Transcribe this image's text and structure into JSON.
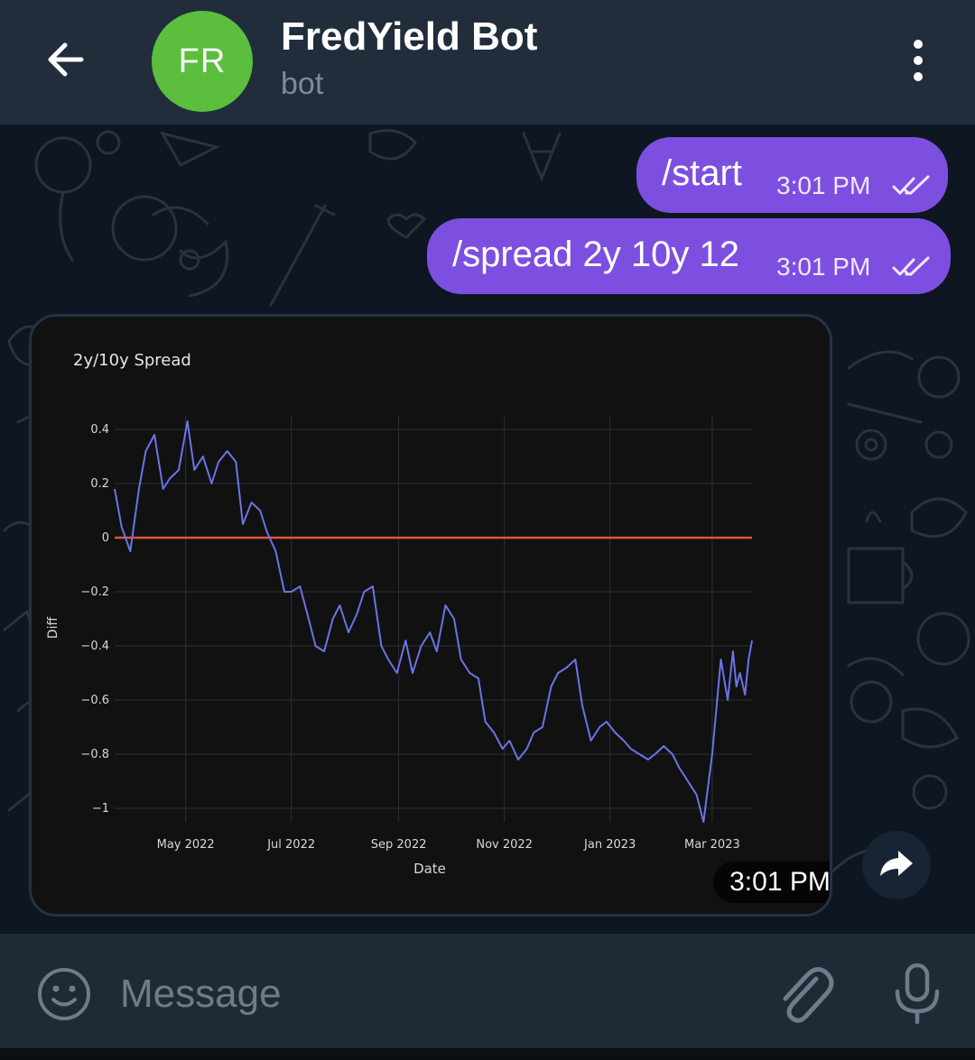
{
  "header": {
    "avatar_initials": "FR",
    "title": "FredYield Bot",
    "subtitle": "bot",
    "back_icon": "arrow-left-icon",
    "menu_icon": "more-vertical-icon"
  },
  "messages": [
    {
      "text": "/start",
      "time": "3:01 PM",
      "status_icon": "double-check-icon"
    },
    {
      "text": "/spread 2y 10y 12",
      "time": "3:01 PM",
      "status_icon": "double-check-icon"
    }
  ],
  "photo": {
    "time": "3:01 PM",
    "share_icon": "forward-arrow-icon"
  },
  "chart_data": {
    "type": "line",
    "title": "2y/10y Spread",
    "xlabel": "Date",
    "ylabel": "Diff",
    "y_ticks": [
      "0.4",
      "0.2",
      "0",
      "−0.2",
      "−0.4",
      "−0.6",
      "−0.8",
      "−1"
    ],
    "x_ticks": [
      "May 2022",
      "Jul 2022",
      "Sep 2022",
      "Nov 2022",
      "Jan 2023",
      "Mar 2023"
    ],
    "ylim": [
      -1.05,
      0.45
    ],
    "xlim": [
      "2022-03-21",
      "2023-03-24"
    ],
    "grid": true,
    "reference_line": {
      "y": 0,
      "color": "#e0533a"
    },
    "series": [
      {
        "color": "#6a74e6",
        "x": [
          "2022-03-21",
          "2022-03-25",
          "2022-03-30",
          "2022-04-04",
          "2022-04-08",
          "2022-04-13",
          "2022-04-18",
          "2022-04-22",
          "2022-04-27",
          "2022-05-02",
          "2022-05-06",
          "2022-05-11",
          "2022-05-16",
          "2022-05-20",
          "2022-05-25",
          "2022-05-30",
          "2022-06-03",
          "2022-06-08",
          "2022-06-13",
          "2022-06-17",
          "2022-06-22",
          "2022-06-27",
          "2022-07-01",
          "2022-07-06",
          "2022-07-11",
          "2022-07-15",
          "2022-07-20",
          "2022-07-25",
          "2022-07-29",
          "2022-08-03",
          "2022-08-08",
          "2022-08-12",
          "2022-08-17",
          "2022-08-22",
          "2022-08-26",
          "2022-08-31",
          "2022-09-05",
          "2022-09-09",
          "2022-09-14",
          "2022-09-19",
          "2022-09-23",
          "2022-09-28",
          "2022-10-03",
          "2022-10-07",
          "2022-10-12",
          "2022-10-17",
          "2022-10-21",
          "2022-10-26",
          "2022-10-31",
          "2022-11-04",
          "2022-11-09",
          "2022-11-14",
          "2022-11-18",
          "2022-11-23",
          "2022-11-28",
          "2022-12-02",
          "2022-12-07",
          "2022-12-12",
          "2022-12-16",
          "2022-12-21",
          "2022-12-26",
          "2022-12-30",
          "2023-01-04",
          "2023-01-09",
          "2023-01-13",
          "2023-01-18",
          "2023-01-23",
          "2023-01-27",
          "2023-02-01",
          "2023-02-06",
          "2023-02-10",
          "2023-02-15",
          "2023-02-20",
          "2023-02-24",
          "2023-03-01",
          "2023-03-06",
          "2023-03-10",
          "2023-03-13",
          "2023-03-15",
          "2023-03-17",
          "2023-03-20",
          "2023-03-22",
          "2023-03-24"
        ],
        "y": [
          0.18,
          0.04,
          -0.05,
          0.18,
          0.32,
          0.38,
          0.18,
          0.22,
          0.25,
          0.43,
          0.25,
          0.3,
          0.2,
          0.28,
          0.32,
          0.28,
          0.05,
          0.13,
          0.1,
          0.02,
          -0.05,
          -0.2,
          -0.2,
          -0.18,
          -0.3,
          -0.4,
          -0.42,
          -0.3,
          -0.25,
          -0.35,
          -0.28,
          -0.2,
          -0.18,
          -0.4,
          -0.45,
          -0.5,
          -0.38,
          -0.5,
          -0.4,
          -0.35,
          -0.42,
          -0.25,
          -0.3,
          -0.45,
          -0.5,
          -0.52,
          -0.68,
          -0.72,
          -0.78,
          -0.75,
          -0.82,
          -0.78,
          -0.72,
          -0.7,
          -0.55,
          -0.5,
          -0.48,
          -0.45,
          -0.62,
          -0.75,
          -0.7,
          -0.68,
          -0.72,
          -0.75,
          -0.78,
          -0.8,
          -0.82,
          -0.8,
          -0.77,
          -0.8,
          -0.85,
          -0.9,
          -0.95,
          -1.05,
          -0.8,
          -0.45,
          -0.6,
          -0.42,
          -0.55,
          -0.5,
          -0.58,
          -0.45,
          -0.38
        ]
      }
    ]
  },
  "input": {
    "placeholder": "Message",
    "emoji_icon": "smile-icon",
    "attach_icon": "paperclip-icon",
    "mic_icon": "microphone-icon"
  }
}
